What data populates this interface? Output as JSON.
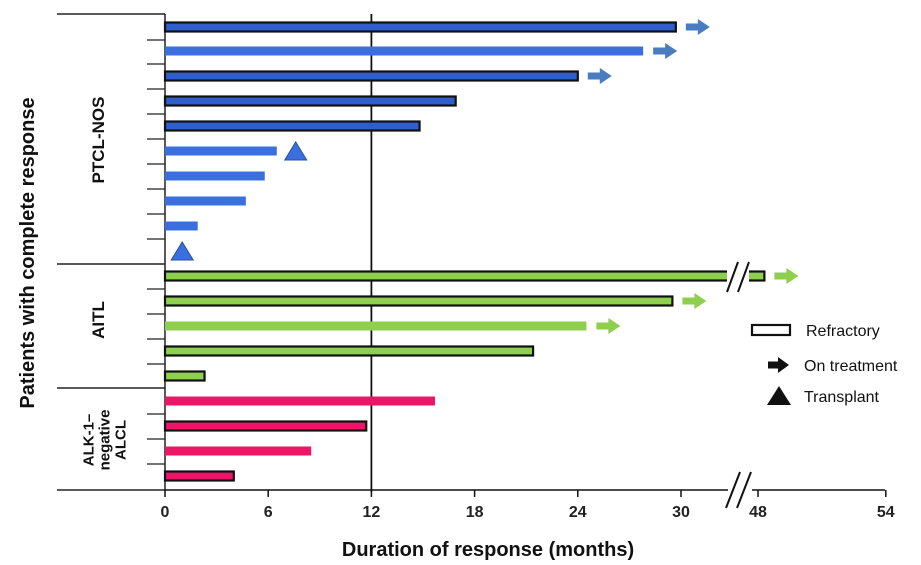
{
  "chart_data": {
    "type": "bar",
    "orientation": "horizontal",
    "xlabel": "Duration of response (months)",
    "ylabel": "Patients with complete response",
    "x_ticks": [
      "0",
      "6",
      "12",
      "18",
      "24",
      "30",
      "48",
      "54"
    ],
    "axis_break": {
      "after": 30,
      "resume": 48
    },
    "reference_line_x": 12,
    "groups": [
      {
        "name": "PTCL-NOS",
        "label_lines": [
          "PTCL-NOS"
        ],
        "color": "#2F5FCC",
        "color_light": "#3B6FE0",
        "arrow_color": "#4A7CC0"
      },
      {
        "name": "AITL",
        "label_lines": [
          "AITL"
        ],
        "color": "#8ECF4E",
        "arrow_color": "#8ECF4E"
      },
      {
        "name": "ALK-1–negative ALCL",
        "label_lines": [
          "ALK-1–",
          "negative",
          "ALCL"
        ],
        "color": "#EE1467",
        "arrow_color": "#EE1467"
      }
    ],
    "patients": [
      {
        "group": 0,
        "value": 29.7,
        "refractory": true,
        "on_treatment": true,
        "transplant_at": null
      },
      {
        "group": 0,
        "value": 27.8,
        "refractory": false,
        "on_treatment": true,
        "transplant_at": null
      },
      {
        "group": 0,
        "value": 24.0,
        "refractory": true,
        "on_treatment": true,
        "transplant_at": null
      },
      {
        "group": 0,
        "value": 16.9,
        "refractory": true,
        "on_treatment": false,
        "transplant_at": null
      },
      {
        "group": 0,
        "value": 14.8,
        "refractory": true,
        "on_treatment": false,
        "transplant_at": null
      },
      {
        "group": 0,
        "value": 6.5,
        "refractory": false,
        "on_treatment": false,
        "transplant_at": 7.6
      },
      {
        "group": 0,
        "value": 5.8,
        "refractory": false,
        "on_treatment": false,
        "transplant_at": null
      },
      {
        "group": 0,
        "value": 4.7,
        "refractory": false,
        "on_treatment": false,
        "transplant_at": null
      },
      {
        "group": 0,
        "value": 1.9,
        "refractory": false,
        "on_treatment": false,
        "transplant_at": null
      },
      {
        "group": 0,
        "value": 0,
        "refractory": false,
        "on_treatment": false,
        "transplant_at": 1.0
      },
      {
        "group": 1,
        "value": 48.3,
        "refractory": true,
        "on_treatment": true,
        "transplant_at": null
      },
      {
        "group": 1,
        "value": 29.5,
        "refractory": true,
        "on_treatment": true,
        "transplant_at": null
      },
      {
        "group": 1,
        "value": 24.5,
        "refractory": false,
        "on_treatment": true,
        "transplant_at": null
      },
      {
        "group": 1,
        "value": 21.4,
        "refractory": true,
        "on_treatment": false,
        "transplant_at": null
      },
      {
        "group": 1,
        "value": 2.3,
        "refractory": true,
        "on_treatment": false,
        "transplant_at": null
      },
      {
        "group": 2,
        "value": 15.7,
        "refractory": false,
        "on_treatment": false,
        "transplant_at": null
      },
      {
        "group": 2,
        "value": 11.7,
        "refractory": true,
        "on_treatment": false,
        "transplant_at": null
      },
      {
        "group": 2,
        "value": 8.5,
        "refractory": false,
        "on_treatment": false,
        "transplant_at": null
      },
      {
        "group": 2,
        "value": 4.0,
        "refractory": true,
        "on_treatment": false,
        "transplant_at": null
      }
    ],
    "legend": {
      "position": "right",
      "items": [
        {
          "label": "Refractory",
          "symbol": "outlined-bar"
        },
        {
          "label": "On treatment",
          "symbol": "arrow"
        },
        {
          "label": "Transplant",
          "symbol": "triangle"
        }
      ]
    }
  }
}
